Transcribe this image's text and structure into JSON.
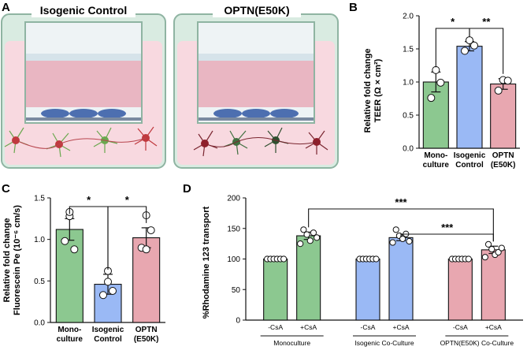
{
  "panels": {
    "a": {
      "letter": "A",
      "wells": [
        {
          "title": "Isogenic Control"
        },
        {
          "title": "OPTN(E50K)"
        }
      ]
    },
    "b": {
      "letter": "B"
    },
    "c": {
      "letter": "C"
    },
    "d": {
      "letter": "D"
    }
  },
  "colors": {
    "green": "#8cc890",
    "blue": "#9ab9f5",
    "pink": "#e8a7b0",
    "well_glass": "#d6e9df",
    "medium": "#f7d7de",
    "medium_top": "#e7a6b5",
    "cells": "#4d6fb0"
  },
  "chart_data": [
    {
      "id": "B",
      "type": "bar",
      "ylabel": "Relative fold change\nTEER (Ω × cm²)",
      "ylim": [
        0,
        2.0
      ],
      "yticks": [
        0.0,
        0.5,
        1.0,
        1.5,
        2.0
      ],
      "tick_labels": [
        "0.0",
        "0.5",
        "1.0",
        "1.5",
        "2.0"
      ],
      "categories": [
        "Mono-\nculture",
        "Isogenic\nControl",
        "OPTN\n(E50K)"
      ],
      "values": [
        1.0,
        1.54,
        0.97
      ],
      "errors": [
        0.15,
        0.07,
        0.08
      ],
      "points": [
        [
          1.18,
          0.76,
          0.99
        ],
        [
          1.63,
          1.47,
          1.55
        ],
        [
          1.03,
          0.87,
          1.02
        ]
      ],
      "colors": [
        "#8cc890",
        "#9ab9f5",
        "#e8a7b0"
      ],
      "significance": [
        {
          "from": 0,
          "to": 1,
          "label": "*"
        },
        {
          "from": 1,
          "to": 2,
          "label": "**"
        }
      ]
    },
    {
      "id": "C",
      "type": "bar",
      "ylabel": "Relative fold change\nFluorescein Pe (10⁻⁶ cm/s)",
      "ylim": [
        0,
        1.5
      ],
      "yticks": [
        0.0,
        0.5,
        1.0,
        1.5
      ],
      "tick_labels": [
        "0.0",
        "0.5",
        "1.0",
        "1.5"
      ],
      "categories": [
        "Mono-\nculture",
        "Isogenic\nControl",
        "OPTN\n(E50K)"
      ],
      "values": [
        1.12,
        0.46,
        1.02
      ],
      "errors": [
        0.13,
        0.12,
        0.12
      ],
      "points": [
        [
          1.28,
          0.98,
          0.88,
          1.33
        ],
        [
          0.62,
          0.33,
          0.38,
          0.49
        ],
        [
          1.29,
          0.9,
          1.11,
          0.88
        ]
      ],
      "colors": [
        "#8cc890",
        "#9ab9f5",
        "#e8a7b0"
      ],
      "significance": [
        {
          "from": 0,
          "to": 1,
          "label": "*"
        },
        {
          "from": 1,
          "to": 2,
          "label": "*"
        }
      ]
    },
    {
      "id": "D",
      "type": "bar",
      "ylabel": "%Rhodamine 123 transport",
      "ylim": [
        0,
        200
      ],
      "yticks": [
        0,
        50,
        100,
        150,
        200
      ],
      "tick_labels": [
        "0",
        "50",
        "100",
        "150",
        "200"
      ],
      "categories": [
        "-CsA",
        "+CsA",
        "-CsA",
        "+CsA",
        "-CsA",
        "+CsA"
      ],
      "groups": [
        "Monoculture",
        "Isogenic Co-Culture",
        "OPTN(E50K) Co-Culture"
      ],
      "values": [
        100,
        138,
        100,
        135,
        100,
        115
      ],
      "errors": [
        0,
        6,
        0,
        5,
        0,
        6
      ],
      "points": [
        [
          100,
          100,
          100,
          100,
          100,
          100
        ],
        [
          125,
          148,
          140,
          130,
          143,
          135
        ],
        [
          100,
          100,
          100,
          100,
          100,
          100
        ],
        [
          127,
          148,
          138,
          133,
          141,
          129
        ],
        [
          100,
          100,
          100,
          100,
          100,
          100
        ],
        [
          103,
          124,
          116,
          107,
          111,
          118
        ]
      ],
      "colors": [
        "#8cc890",
        "#8cc890",
        "#9ab9f5",
        "#9ab9f5",
        "#e8a7b0",
        "#e8a7b0"
      ],
      "significance": [
        {
          "from": 1,
          "to": 5,
          "label": "***"
        },
        {
          "from": 3,
          "to": 5,
          "label": "***"
        }
      ]
    }
  ]
}
